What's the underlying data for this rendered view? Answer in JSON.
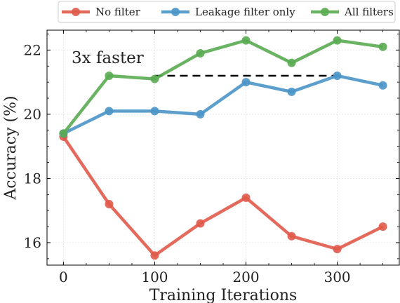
{
  "chart_data": {
    "type": "line",
    "xlabel": "Training Iterations",
    "ylabel": "Accuracy (%)",
    "xlim": [
      -18,
      368
    ],
    "ylim": [
      15.3,
      22.62
    ],
    "xticks": [
      0,
      100,
      200,
      300
    ],
    "yticks": [
      16,
      18,
      20,
      22
    ],
    "x": [
      0,
      50,
      100,
      150,
      200,
      250,
      300,
      350
    ],
    "series": [
      {
        "name": "No filter",
        "color": "#e05a4a",
        "values": [
          19.3,
          17.2,
          15.6,
          16.6,
          17.4,
          16.2,
          15.8,
          16.5
        ]
      },
      {
        "name": "Leakage filter only",
        "color": "#4a95c8",
        "values": [
          19.4,
          20.1,
          20.1,
          20.0,
          21.0,
          20.7,
          21.2,
          20.9
        ]
      },
      {
        "name": "All filters",
        "color": "#5aab52",
        "values": [
          19.4,
          21.2,
          21.1,
          21.9,
          22.3,
          21.6,
          22.3,
          22.1
        ]
      }
    ],
    "reference_line": {
      "y": 21.2,
      "x_start": 100,
      "x_end": 300,
      "style": "dashed",
      "color": "#000000"
    },
    "annotation": "3x faster",
    "legend_position": "top-outside",
    "grid": true
  }
}
